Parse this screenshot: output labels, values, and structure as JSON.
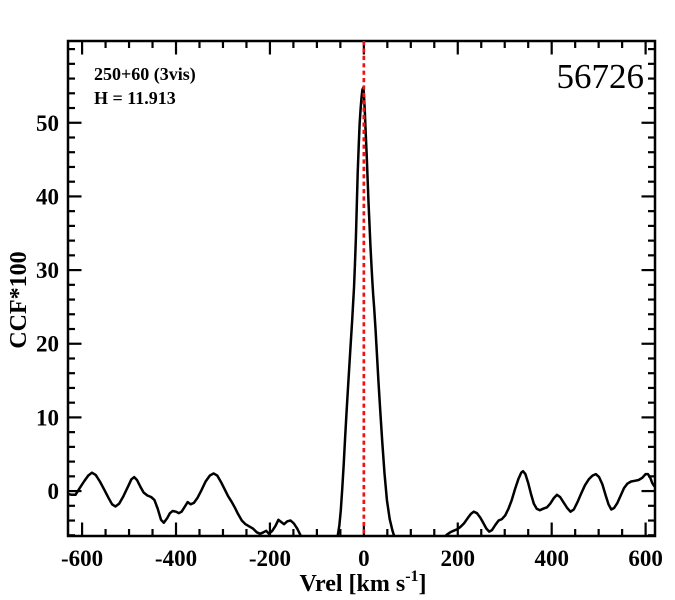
{
  "figure": {
    "background": "#ffffff",
    "annotation": {
      "line1": "250+60 (3vis)",
      "line2": "H = 11.913"
    },
    "star_id": "56726"
  },
  "chart_data": {
    "type": "line",
    "title": "",
    "xlabel": "Vrel [km s^-1]",
    "xlabel_main": "Vrel [km s",
    "xlabel_sup": "-1",
    "xlabel_close": "]",
    "ylabel": "CCF*100",
    "xlim": [
      -630,
      620
    ],
    "ylim": [
      -6.1,
      61.1
    ],
    "x_ticks": [
      -600,
      -400,
      -200,
      0,
      200,
      400,
      600
    ],
    "y_ticks": [
      0,
      10,
      20,
      30,
      40,
      50
    ],
    "x_minor_step": 50,
    "y_minor_step": 2,
    "grid": false,
    "legend": false,
    "line_color": "#000000",
    "marker_line": {
      "x": 0,
      "color": "#ee1212",
      "style": "dotted"
    },
    "series": [
      {
        "name": "CCF",
        "points": [
          [
            -630,
            -0.4
          ],
          [
            -622,
            -0.5
          ],
          [
            -614,
            -0.5
          ],
          [
            -605,
            0.4
          ],
          [
            -596,
            1.3
          ],
          [
            -587,
            2.1
          ],
          [
            -579,
            2.5
          ],
          [
            -571,
            2.2
          ],
          [
            -562,
            1.3
          ],
          [
            -553,
            0.2
          ],
          [
            -544,
            -0.9
          ],
          [
            -536,
            -1.8
          ],
          [
            -529,
            -2.1
          ],
          [
            -521,
            -1.7
          ],
          [
            -512,
            -0.7
          ],
          [
            -503,
            0.5
          ],
          [
            -495,
            1.6
          ],
          [
            -489,
            1.9
          ],
          [
            -483,
            1.5
          ],
          [
            -476,
            0.6
          ],
          [
            -469,
            -0.2
          ],
          [
            -461,
            -0.6
          ],
          [
            -453,
            -0.8
          ],
          [
            -446,
            -1.2
          ],
          [
            -439,
            -2.4
          ],
          [
            -432,
            -3.9
          ],
          [
            -426,
            -4.3
          ],
          [
            -419,
            -3.7
          ],
          [
            -413,
            -3.0
          ],
          [
            -407,
            -2.7
          ],
          [
            -400,
            -2.8
          ],
          [
            -394,
            -3.0
          ],
          [
            -388,
            -2.8
          ],
          [
            -381,
            -2.1
          ],
          [
            -375,
            -1.5
          ],
          [
            -369,
            -1.8
          ],
          [
            -362,
            -1.6
          ],
          [
            -354,
            -0.9
          ],
          [
            -346,
            0.1
          ],
          [
            -337,
            1.3
          ],
          [
            -328,
            2.1
          ],
          [
            -320,
            2.4
          ],
          [
            -312,
            2.1
          ],
          [
            -304,
            1.2
          ],
          [
            -296,
            0.2
          ],
          [
            -289,
            -0.7
          ],
          [
            -282,
            -1.4
          ],
          [
            -275,
            -2.2
          ],
          [
            -268,
            -3.1
          ],
          [
            -260,
            -4.0
          ],
          [
            -252,
            -4.5
          ],
          [
            -244,
            -4.8
          ],
          [
            -236,
            -5.1
          ],
          [
            -228,
            -5.6
          ],
          [
            -221,
            -5.8
          ],
          [
            -214,
            -5.6
          ],
          [
            -208,
            -5.4
          ],
          [
            -202,
            -5.8
          ],
          [
            -195,
            -5.4
          ],
          [
            -188,
            -4.7
          ],
          [
            -182,
            -3.9
          ],
          [
            -176,
            -4.2
          ],
          [
            -170,
            -4.5
          ],
          [
            -163,
            -4.1
          ],
          [
            -156,
            -4.0
          ],
          [
            -149,
            -4.4
          ],
          [
            -142,
            -5.1
          ],
          [
            -134,
            -6.1
          ],
          [
            -126,
            -7.2
          ],
          [
            -117,
            -8.8
          ],
          [
            -104,
            -11.0
          ],
          [
            -88,
            -12.5
          ],
          [
            -72,
            -10.0
          ],
          [
            -62,
            -7.6
          ],
          [
            -56,
            -6.2
          ],
          [
            -52,
            -4.6
          ],
          [
            -49,
            -2.6
          ],
          [
            -46,
            0.2
          ],
          [
            -43,
            3.6
          ],
          [
            -40,
            7.2
          ],
          [
            -37,
            10.6
          ],
          [
            -34,
            13.8
          ],
          [
            -31,
            16.9
          ],
          [
            -28,
            20.0
          ],
          [
            -25,
            23.0
          ],
          [
            -23,
            25.2
          ],
          [
            -21,
            27.6
          ],
          [
            -19,
            30.6
          ],
          [
            -17,
            34.4
          ],
          [
            -15,
            38.8
          ],
          [
            -13,
            43.2
          ],
          [
            -11,
            46.8
          ],
          [
            -9,
            49.8
          ],
          [
            -7,
            51.9
          ],
          [
            -5,
            53.4
          ],
          [
            -3,
            54.5
          ],
          [
            -1,
            54.8
          ],
          [
            0,
            54.1
          ],
          [
            2,
            51.6
          ],
          [
            4,
            48.6
          ],
          [
            6,
            45.6
          ],
          [
            8,
            42.4
          ],
          [
            10,
            39.2
          ],
          [
            12,
            36.2
          ],
          [
            14,
            33.4
          ],
          [
            16,
            30.8
          ],
          [
            18,
            28.6
          ],
          [
            20,
            26.6
          ],
          [
            22,
            24.8
          ],
          [
            25,
            21.8
          ],
          [
            28,
            18.4
          ],
          [
            31,
            15.0
          ],
          [
            35,
            10.8
          ],
          [
            39,
            6.8
          ],
          [
            44,
            2.4
          ],
          [
            49,
            -1.2
          ],
          [
            55,
            -3.8
          ],
          [
            61,
            -5.4
          ],
          [
            67,
            -6.6
          ],
          [
            76,
            -9.0
          ],
          [
            92,
            -12.0
          ],
          [
            120,
            -13.5
          ],
          [
            148,
            -10.5
          ],
          [
            162,
            -7.6
          ],
          [
            170,
            -6.3
          ],
          [
            177,
            -5.9
          ],
          [
            184,
            -5.6
          ],
          [
            191,
            -5.4
          ],
          [
            198,
            -5.2
          ],
          [
            205,
            -4.9
          ],
          [
            213,
            -4.4
          ],
          [
            221,
            -3.7
          ],
          [
            228,
            -3.1
          ],
          [
            234,
            -2.8
          ],
          [
            241,
            -3.0
          ],
          [
            248,
            -3.6
          ],
          [
            255,
            -4.4
          ],
          [
            261,
            -5.1
          ],
          [
            267,
            -5.5
          ],
          [
            273,
            -5.3
          ],
          [
            280,
            -4.6
          ],
          [
            287,
            -4.0
          ],
          [
            294,
            -3.8
          ],
          [
            301,
            -3.3
          ],
          [
            308,
            -2.4
          ],
          [
            315,
            -1.2
          ],
          [
            322,
            0.3
          ],
          [
            329,
            1.6
          ],
          [
            335,
            2.5
          ],
          [
            339,
            2.7
          ],
          [
            344,
            2.3
          ],
          [
            350,
            1.1
          ],
          [
            356,
            -0.4
          ],
          [
            362,
            -1.7
          ],
          [
            368,
            -2.4
          ],
          [
            375,
            -2.6
          ],
          [
            382,
            -2.4
          ],
          [
            390,
            -2.2
          ],
          [
            397,
            -1.7
          ],
          [
            404,
            -1.0
          ],
          [
            411,
            -0.5
          ],
          [
            418,
            -0.8
          ],
          [
            426,
            -1.6
          ],
          [
            433,
            -2.3
          ],
          [
            440,
            -2.8
          ],
          [
            447,
            -2.5
          ],
          [
            455,
            -1.5
          ],
          [
            463,
            -0.3
          ],
          [
            471,
            0.8
          ],
          [
            479,
            1.6
          ],
          [
            487,
            2.1
          ],
          [
            494,
            2.3
          ],
          [
            501,
            1.9
          ],
          [
            508,
            0.9
          ],
          [
            515,
            -0.6
          ],
          [
            521,
            -1.8
          ],
          [
            527,
            -2.5
          ],
          [
            533,
            -2.3
          ],
          [
            540,
            -1.6
          ],
          [
            547,
            -0.6
          ],
          [
            554,
            0.4
          ],
          [
            561,
            1.0
          ],
          [
            569,
            1.3
          ],
          [
            577,
            1.4
          ],
          [
            585,
            1.5
          ],
          [
            593,
            1.8
          ],
          [
            600,
            2.3
          ],
          [
            605,
            2.3
          ],
          [
            610,
            1.8
          ],
          [
            614,
            1.1
          ],
          [
            618,
            0.7
          ]
        ]
      }
    ]
  }
}
